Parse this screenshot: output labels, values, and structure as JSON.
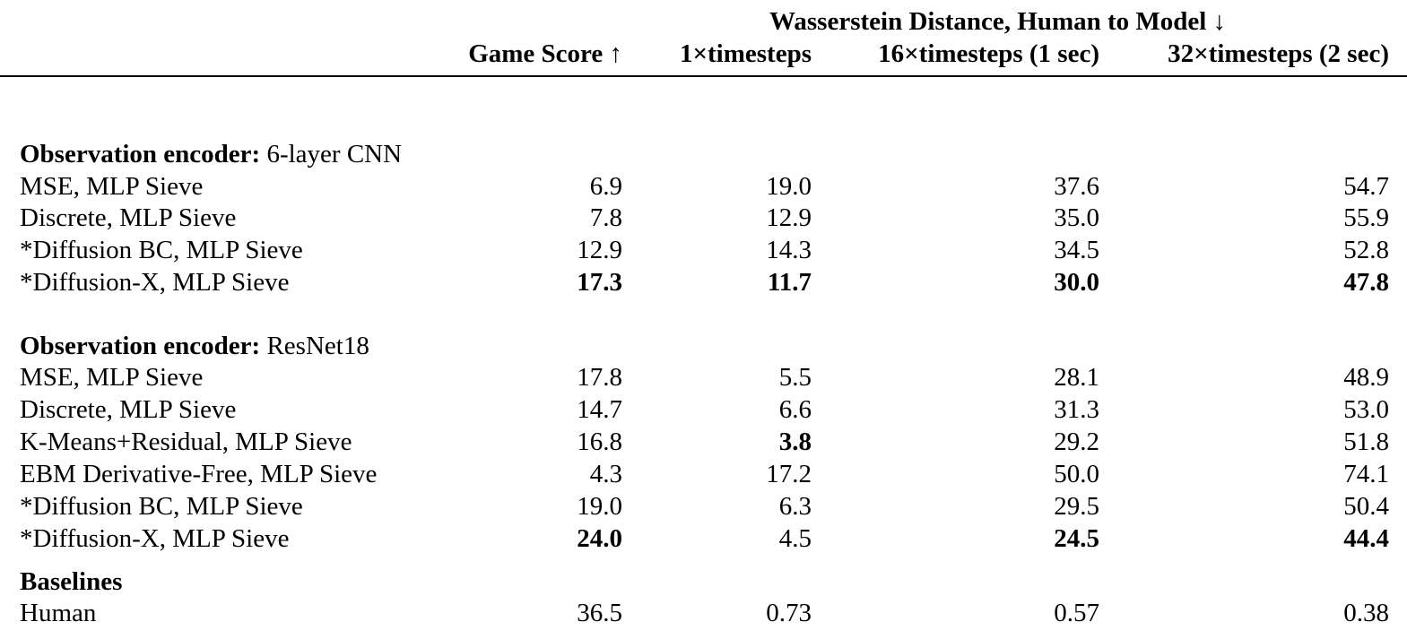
{
  "header": {
    "super": "Wasserstein Distance, Human to Model ↓",
    "columns": [
      "Game Score ↑",
      "1×timesteps",
      "16×timesteps (1 sec)",
      "32×timesteps (2 sec)"
    ]
  },
  "sections": [
    {
      "bold": "Observation encoder:",
      "rest": " 6-layer CNN"
    },
    {
      "bold": "Observation encoder:",
      "rest": " ResNet18"
    },
    {
      "bold": "Baselines",
      "rest": ""
    }
  ],
  "rows": [
    {
      "label": "MSE, MLP Sieve",
      "v": [
        "6.9",
        "19.0",
        "37.6",
        "54.7"
      ]
    },
    {
      "label": "Discrete, MLP Sieve",
      "v": [
        "7.8",
        "12.9",
        "35.0",
        "55.9"
      ]
    },
    {
      "label": "*Diffusion BC, MLP Sieve",
      "v": [
        "12.9",
        "14.3",
        "34.5",
        "52.8"
      ]
    },
    {
      "label": "*Diffusion-X, MLP Sieve",
      "v": [
        "17.3",
        "11.7",
        "30.0",
        "47.8"
      ]
    },
    {
      "label": "MSE, MLP Sieve",
      "v": [
        "17.8",
        "5.5",
        "28.1",
        "48.9"
      ]
    },
    {
      "label": "Discrete, MLP Sieve",
      "v": [
        "14.7",
        "6.6",
        "31.3",
        "53.0"
      ]
    },
    {
      "label": "K-Means+Residual, MLP Sieve",
      "v": [
        "16.8",
        "3.8",
        "29.2",
        "51.8"
      ]
    },
    {
      "label": "EBM Derivative-Free, MLP Sieve",
      "v": [
        "4.3",
        "17.2",
        "50.0",
        "74.1"
      ]
    },
    {
      "label": "*Diffusion BC, MLP Sieve",
      "v": [
        "19.0",
        "6.3",
        "29.5",
        "50.4"
      ]
    },
    {
      "label": "*Diffusion-X, MLP Sieve",
      "v": [
        "24.0",
        "4.5",
        "24.5",
        "44.4"
      ]
    },
    {
      "label": "Human",
      "v": [
        "36.5",
        "0.73",
        "0.57",
        "0.38"
      ]
    }
  ]
}
